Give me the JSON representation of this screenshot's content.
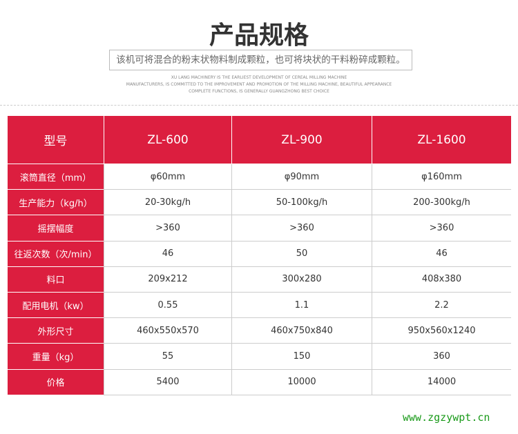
{
  "header": {
    "title": "产品规格",
    "subtitle": "该机可将混合的粉末状物料制成颗粒，也可将块状的干料粉碎成颗粒。",
    "english": [
      "XU LANG MACHINERY IS THE EARLIEST DEVELOPMENT OF CEREAL MILLING MACHINE",
      "MANUFACTURERS, IS COMMITTED TO THE IMPROVEMENT AND PROMOTION OF THE MILLING MACHINE, BEAUTIFUL APPEARANCE",
      "COMPLETE FUNCTIONS, IS GENERALLY GUANGZHONG BEST CHOICE"
    ]
  },
  "table": {
    "columns": [
      "型号",
      "ZL-600",
      "ZL-900",
      "ZL-1600"
    ],
    "rows": [
      [
        "滚筒直径（mm）",
        "φ60mm",
        "φ90mm",
        "φ160mm"
      ],
      [
        "生产能力（kg/h）",
        "20-30kg/h",
        "50-100kg/h",
        "200-300kg/h"
      ],
      [
        "摇摆幅度",
        ">360",
        ">360",
        ">360"
      ],
      [
        "往返次数（次/min）",
        "46",
        "50",
        "46"
      ],
      [
        "料口",
        "209x212",
        "300x280",
        "408x380"
      ],
      [
        "配用电机（kw）",
        "0.55",
        "1.1",
        "2.2"
      ],
      [
        "外形尺寸",
        "460x550x570",
        "460x750x840",
        "950x560x1240"
      ],
      [
        "重量（kg）",
        "55",
        "150",
        "360"
      ],
      [
        "价格",
        "5400",
        "10000",
        "14000"
      ]
    ]
  },
  "footer": {
    "watermark": "www.zgzywpt.cn"
  }
}
